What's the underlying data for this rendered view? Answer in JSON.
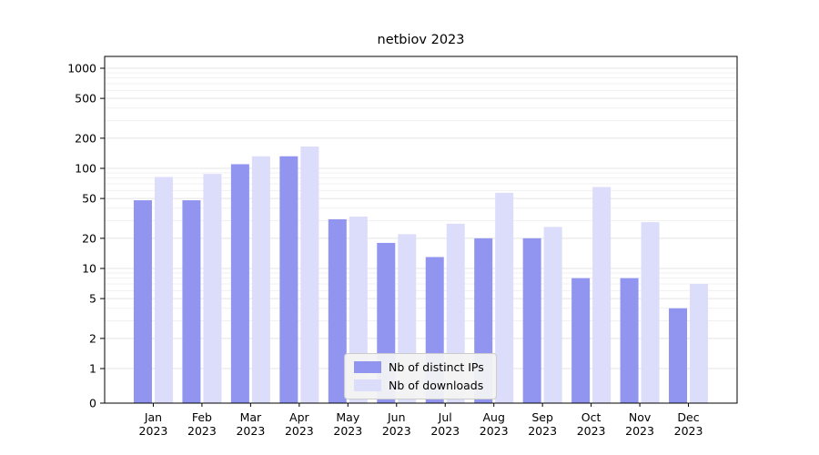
{
  "chart_data": {
    "type": "bar",
    "title": "netbiov 2023",
    "categories": [
      "Jan 2023",
      "Feb 2023",
      "Mar 2023",
      "Apr 2023",
      "May 2023",
      "Jun 2023",
      "Jul 2023",
      "Aug 2023",
      "Sep 2023",
      "Oct 2023",
      "Nov 2023",
      "Dec 2023"
    ],
    "series": [
      {
        "key": "distinct-ips",
        "name": "Nb of distinct IPs",
        "color": "#9195ef",
        "values": [
          48,
          48,
          110,
          132,
          31,
          18,
          13,
          20,
          20,
          8,
          8,
          4
        ]
      },
      {
        "key": "downloads",
        "name": "Nb of downloads",
        "color": "#dcdcfb",
        "values": [
          82,
          88,
          132,
          165,
          33,
          22,
          28,
          57,
          26,
          65,
          29,
          7
        ]
      }
    ],
    "yticks": [
      0,
      1,
      2,
      5,
      10,
      20,
      50,
      100,
      200,
      500,
      1000
    ],
    "yscale": "log-with-zero",
    "grid": "horizontal",
    "legend_position": "bottom-center"
  },
  "colors": {
    "major_grid": "#e4e4e4",
    "minor_grid": "#f1f1f1",
    "axis": "#000000",
    "background": "#ffffff"
  }
}
